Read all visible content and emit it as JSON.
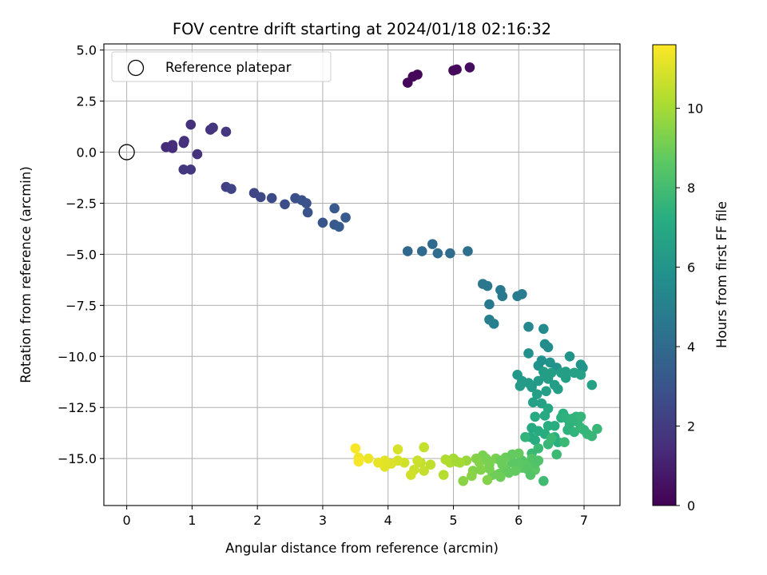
{
  "chart_data": {
    "type": "scatter",
    "title": "FOV centre drift starting at 2024/01/18 02:16:32",
    "xlabel": "Angular distance from reference (arcmin)",
    "ylabel": "Rotation from reference (arcmin)",
    "xlim": [
      -0.35,
      7.55
    ],
    "ylim": [
      -17.3,
      5.3
    ],
    "x_ticks": [
      0,
      1,
      2,
      3,
      4,
      5,
      6,
      7
    ],
    "x_tick_labels": [
      "0",
      "1",
      "2",
      "3",
      "4",
      "5",
      "6",
      "7"
    ],
    "y_ticks": [
      5.0,
      2.5,
      0.0,
      -2.5,
      -5.0,
      -7.5,
      -10.0,
      -12.5,
      -15.0
    ],
    "y_tick_labels": [
      "5.0",
      "2.5",
      "0.0",
      "−2.5",
      "−5.0",
      "−7.5",
      "−10.0",
      "−12.5",
      "−15.0"
    ],
    "grid": true,
    "legend": {
      "position": "top-left",
      "entries": [
        "Reference platepar"
      ]
    },
    "reference_point": {
      "x": 0,
      "y": 0,
      "marker": "open-circle"
    },
    "colorbar": {
      "label": "Hours from first FF file",
      "colormap": "viridis",
      "range": [
        0,
        11.6
      ],
      "ticks": [
        0,
        2,
        4,
        6,
        8,
        10
      ],
      "tick_labels": [
        "0",
        "2",
        "4",
        "6",
        "8",
        "10"
      ]
    },
    "points": [
      [
        4.3,
        3.4,
        0.1
      ],
      [
        4.38,
        3.7,
        0.2
      ],
      [
        4.45,
        3.8,
        0.2
      ],
      [
        5.0,
        4.0,
        0.3
      ],
      [
        5.05,
        4.05,
        0.3
      ],
      [
        5.25,
        4.15,
        0.4
      ],
      [
        0.6,
        0.25,
        1.4
      ],
      [
        0.7,
        0.2,
        1.5
      ],
      [
        0.7,
        0.35,
        1.5
      ],
      [
        0.87,
        0.45,
        1.5
      ],
      [
        0.88,
        0.55,
        1.6
      ],
      [
        0.98,
        1.35,
        1.6
      ],
      [
        1.08,
        -0.1,
        1.7
      ],
      [
        1.28,
        1.1,
        1.7
      ],
      [
        1.32,
        1.2,
        1.8
      ],
      [
        1.52,
        1.0,
        1.8
      ],
      [
        0.87,
        -0.85,
        1.9
      ],
      [
        0.98,
        -0.85,
        1.9
      ],
      [
        1.52,
        -1.7,
        2.2
      ],
      [
        1.6,
        -1.8,
        2.3
      ],
      [
        1.95,
        -2.0,
        2.4
      ],
      [
        2.05,
        -2.2,
        2.5
      ],
      [
        2.22,
        -2.25,
        2.6
      ],
      [
        2.42,
        -2.55,
        2.7
      ],
      [
        2.58,
        -2.25,
        2.8
      ],
      [
        2.68,
        -2.35,
        2.9
      ],
      [
        2.75,
        -2.5,
        2.9
      ],
      [
        2.77,
        -2.95,
        3.0
      ],
      [
        3.0,
        -3.45,
        3.1
      ],
      [
        3.18,
        -2.75,
        3.2
      ],
      [
        3.18,
        -3.55,
        3.2
      ],
      [
        3.25,
        -3.65,
        3.3
      ],
      [
        3.35,
        -3.2,
        3.3
      ],
      [
        4.3,
        -4.85,
        3.9
      ],
      [
        4.52,
        -4.85,
        4.0
      ],
      [
        4.68,
        -4.5,
        4.0
      ],
      [
        4.76,
        -4.95,
        4.1
      ],
      [
        4.95,
        -4.95,
        4.1
      ],
      [
        5.22,
        -4.85,
        4.2
      ],
      [
        5.45,
        -6.45,
        4.6
      ],
      [
        5.52,
        -6.55,
        4.6
      ],
      [
        5.55,
        -7.45,
        4.7
      ],
      [
        5.72,
        -6.75,
        4.7
      ],
      [
        5.75,
        -7.05,
        4.7
      ],
      [
        5.98,
        -7.05,
        4.8
      ],
      [
        6.05,
        -6.95,
        4.8
      ],
      [
        5.55,
        -8.2,
        4.9
      ],
      [
        5.62,
        -8.4,
        5.0
      ],
      [
        6.15,
        -8.55,
        5.4
      ],
      [
        6.38,
        -8.65,
        5.5
      ],
      [
        6.4,
        -9.4,
        5.6
      ],
      [
        6.45,
        -9.55,
        5.6
      ],
      [
        6.15,
        -9.85,
        5.7
      ],
      [
        6.35,
        -10.2,
        5.8
      ],
      [
        6.3,
        -10.45,
        5.8
      ],
      [
        6.48,
        -10.3,
        5.9
      ],
      [
        6.58,
        -10.55,
        5.9
      ],
      [
        6.78,
        -10.0,
        6.0
      ],
      [
        6.95,
        -10.4,
        6.0
      ],
      [
        6.98,
        -10.55,
        6.0
      ],
      [
        5.98,
        -10.9,
        6.2
      ],
      [
        6.05,
        -11.2,
        6.2
      ],
      [
        6.02,
        -11.45,
        6.3
      ],
      [
        6.15,
        -11.3,
        6.3
      ],
      [
        6.2,
        -11.5,
        6.3
      ],
      [
        6.3,
        -11.2,
        6.3
      ],
      [
        6.38,
        -10.75,
        6.4
      ],
      [
        6.4,
        -10.95,
        6.4
      ],
      [
        6.45,
        -11.1,
        6.4
      ],
      [
        6.5,
        -10.8,
        6.4
      ],
      [
        6.55,
        -11.4,
        6.4
      ],
      [
        6.6,
        -11.6,
        6.5
      ],
      [
        6.65,
        -10.8,
        6.5
      ],
      [
        6.72,
        -10.75,
        6.5
      ],
      [
        6.72,
        -11.05,
        6.5
      ],
      [
        6.85,
        -10.8,
        6.6
      ],
      [
        6.95,
        -10.9,
        6.6
      ],
      [
        7.12,
        -11.4,
        6.6
      ],
      [
        6.22,
        -12.25,
        6.6
      ],
      [
        6.35,
        -12.3,
        6.6
      ],
      [
        6.28,
        -11.85,
        6.5
      ],
      [
        6.42,
        -11.7,
        6.5
      ],
      [
        6.45,
        -12.55,
        6.9
      ],
      [
        6.25,
        -12.95,
        7.0
      ],
      [
        6.4,
        -12.9,
        7.0
      ],
      [
        6.2,
        -13.5,
        7.0
      ],
      [
        6.18,
        -13.95,
        7.1
      ],
      [
        6.25,
        -14.1,
        7.1
      ],
      [
        6.3,
        -13.65,
        7.1
      ],
      [
        6.4,
        -13.8,
        7.2
      ],
      [
        6.45,
        -13.4,
        7.2
      ],
      [
        6.55,
        -13.4,
        7.2
      ],
      [
        6.55,
        -13.95,
        7.3
      ],
      [
        6.6,
        -14.2,
        7.3
      ],
      [
        6.65,
        -13.0,
        7.3
      ],
      [
        6.68,
        -12.8,
        7.3
      ],
      [
        6.72,
        -13.0,
        7.4
      ],
      [
        6.75,
        -13.6,
        7.4
      ],
      [
        6.78,
        -13.3,
        7.4
      ],
      [
        6.82,
        -13.05,
        7.5
      ],
      [
        6.85,
        -13.7,
        7.5
      ],
      [
        6.88,
        -12.95,
        7.5
      ],
      [
        6.9,
        -13.2,
        7.5
      ],
      [
        6.95,
        -12.95,
        7.6
      ],
      [
        6.95,
        -13.5,
        7.6
      ],
      [
        7.0,
        -13.6,
        7.6
      ],
      [
        7.05,
        -13.8,
        7.6
      ],
      [
        7.12,
        -13.9,
        7.7
      ],
      [
        7.2,
        -13.55,
        7.7
      ],
      [
        6.45,
        -14.3,
        7.7
      ],
      [
        6.3,
        -14.5,
        7.8
      ],
      [
        6.2,
        -14.75,
        7.8
      ],
      [
        6.5,
        -14.0,
        7.8
      ],
      [
        6.58,
        -14.8,
        7.8
      ],
      [
        6.7,
        -14.2,
        7.8
      ],
      [
        6.38,
        -16.1,
        7.9
      ],
      [
        6.1,
        -13.95,
        7.5
      ],
      [
        6.2,
        -15.0,
        8.4
      ],
      [
        6.05,
        -15.1,
        8.4
      ],
      [
        6.0,
        -15.2,
        8.6
      ],
      [
        5.9,
        -15.2,
        8.6
      ],
      [
        5.8,
        -15.5,
        8.8
      ],
      [
        5.85,
        -15.7,
        8.8
      ],
      [
        6.1,
        -15.3,
        8.6
      ],
      [
        6.25,
        -15.55,
        8.6
      ],
      [
        5.7,
        -15.75,
        8.9
      ],
      [
        5.6,
        -15.8,
        9.0
      ],
      [
        5.72,
        -15.9,
        9.0
      ],
      [
        5.55,
        -15.5,
        9.2
      ],
      [
        5.55,
        -15.3,
        9.2
      ],
      [
        5.4,
        -15.2,
        9.4
      ],
      [
        5.42,
        -15.55,
        9.4
      ],
      [
        5.3,
        -15.6,
        9.4
      ],
      [
        5.28,
        -15.85,
        9.5
      ],
      [
        5.15,
        -16.1,
        9.5
      ],
      [
        5.52,
        -16.05,
        9.4
      ],
      [
        5.45,
        -14.85,
        9.2
      ],
      [
        5.35,
        -15.0,
        9.4
      ],
      [
        5.5,
        -15.0,
        9.2
      ],
      [
        5.65,
        -15.0,
        9.2
      ],
      [
        5.72,
        -15.1,
        9.0
      ],
      [
        5.8,
        -14.95,
        8.9
      ],
      [
        5.9,
        -14.8,
        8.8
      ],
      [
        6.0,
        -14.75,
        8.8
      ],
      [
        6.05,
        -15.45,
        8.6
      ],
      [
        6.12,
        -15.5,
        8.5
      ],
      [
        6.18,
        -15.8,
        8.4
      ],
      [
        6.25,
        -15.25,
        8.4
      ],
      [
        6.3,
        -15.1,
        8.3
      ],
      [
        5.95,
        -15.6,
        8.8
      ],
      [
        5.75,
        -15.3,
        8.9
      ],
      [
        5.2,
        -15.1,
        9.8
      ],
      [
        5.1,
        -15.2,
        10.0
      ],
      [
        5.0,
        -15.0,
        10.0
      ],
      [
        4.95,
        -15.2,
        10.2
      ],
      [
        4.88,
        -15.05,
        10.2
      ],
      [
        4.85,
        -15.8,
        10.3
      ],
      [
        4.55,
        -14.45,
        10.6
      ],
      [
        4.5,
        -15.2,
        10.6
      ],
      [
        4.45,
        -15.1,
        10.7
      ],
      [
        4.4,
        -15.55,
        10.7
      ],
      [
        4.35,
        -15.8,
        10.8
      ],
      [
        4.25,
        -15.2,
        10.8
      ],
      [
        4.15,
        -15.1,
        10.9
      ],
      [
        4.15,
        -14.55,
        10.9
      ],
      [
        4.05,
        -15.25,
        11.0
      ],
      [
        3.95,
        -15.1,
        11.1
      ],
      [
        3.95,
        -15.4,
        11.1
      ],
      [
        3.85,
        -15.2,
        11.2
      ],
      [
        3.7,
        -15.0,
        11.3
      ],
      [
        3.55,
        -14.95,
        11.4
      ],
      [
        3.5,
        -14.5,
        11.5
      ],
      [
        3.55,
        -15.15,
        11.5
      ],
      [
        4.55,
        -15.6,
        10.6
      ],
      [
        4.65,
        -15.3,
        10.5
      ],
      [
        5.05,
        -15.15,
        10.0
      ]
    ]
  }
}
